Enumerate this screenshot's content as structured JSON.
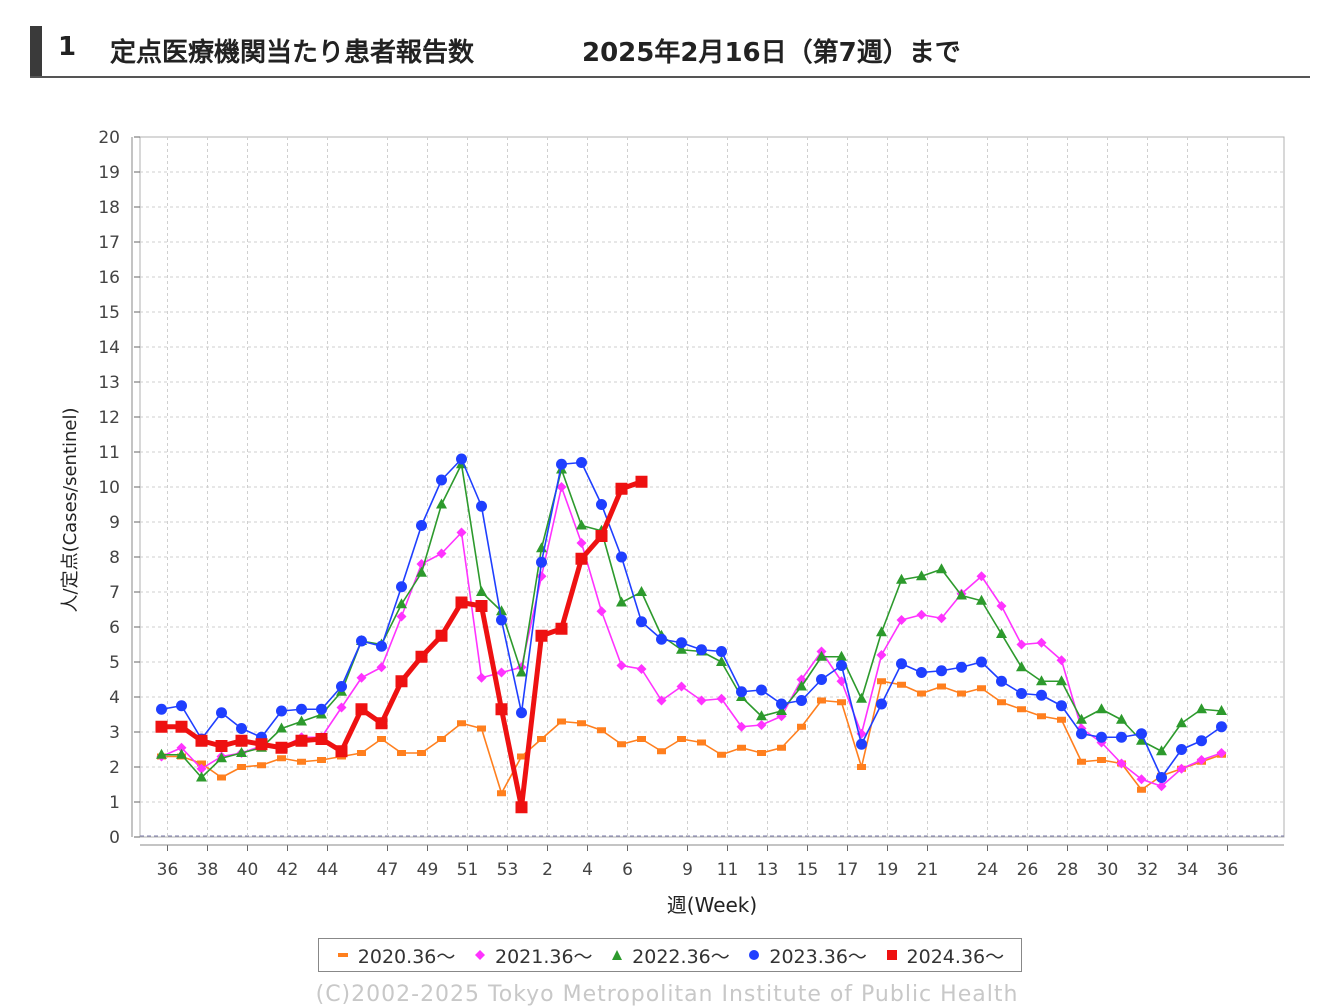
{
  "header": {
    "number": "1",
    "title": "定点医療機関当たり患者報告数",
    "date_range": "2025年2月16日（第7週）まで"
  },
  "chart_data": {
    "type": "line",
    "title": "",
    "xlabel": "週(Week)",
    "ylabel": "人/定点(Cases/sentinel)",
    "ylim": [
      0,
      20
    ],
    "yticks": [
      "0",
      "1",
      "2",
      "3",
      "4",
      "5",
      "6",
      "7",
      "8",
      "9",
      "10",
      "11",
      "12",
      "13",
      "14",
      "15",
      "16",
      "17",
      "18",
      "19",
      "20"
    ],
    "x_tick_labels": [
      "36",
      "38",
      "40",
      "42",
      "44",
      "47",
      "49",
      "51",
      "53",
      "2",
      "4",
      "6",
      "9",
      "11",
      "13",
      "15",
      "17",
      "19",
      "21",
      "24",
      "26",
      "28",
      "30",
      "32",
      "34",
      "36"
    ],
    "grid": true,
    "legend_position": "bottom",
    "series": [
      {
        "name": "2020.36～",
        "color": "#ff7f1e",
        "marker": "square",
        "values": [
          2.3,
          2.3,
          2.1,
          1.7,
          2.0,
          2.05,
          2.25,
          2.15,
          2.2,
          2.3,
          2.4,
          2.8,
          2.4,
          2.4,
          2.8,
          3.25,
          3.1,
          1.25,
          2.3,
          2.8,
          3.3,
          3.25,
          3.05,
          2.65,
          2.8,
          2.45,
          2.8,
          2.7,
          2.35,
          2.55,
          2.4,
          2.55,
          3.15,
          3.9,
          3.85,
          2.0,
          4.45,
          4.35,
          4.1,
          4.3,
          4.1,
          4.25,
          3.85,
          3.65,
          3.45,
          3.35,
          2.15,
          2.2,
          2.1,
          1.35,
          1.75,
          1.95,
          2.15,
          2.35
        ]
      },
      {
        "name": "2021.36～",
        "color": "#ff33ff",
        "marker": "diamond",
        "values": [
          2.3,
          2.55,
          1.95,
          2.3,
          2.4,
          2.6,
          2.55,
          2.85,
          2.85,
          3.7,
          4.55,
          4.85,
          6.3,
          7.8,
          8.1,
          8.7,
          4.55,
          4.7,
          4.85,
          7.45,
          10.0,
          8.4,
          6.45,
          4.9,
          4.8,
          3.9,
          4.3,
          3.9,
          3.95,
          3.15,
          3.2,
          3.45,
          4.5,
          5.3,
          4.45,
          2.95,
          5.2,
          6.2,
          6.35,
          6.25,
          6.95,
          7.45,
          6.6,
          5.5,
          5.55,
          5.05,
          3.1,
          2.7,
          2.1,
          1.65,
          1.45,
          1.95,
          2.2,
          2.4
        ]
      },
      {
        "name": "2022.36～",
        "color": "#2d9a2d",
        "marker": "triangle",
        "values": [
          2.35,
          2.35,
          1.7,
          2.25,
          2.4,
          2.55,
          3.1,
          3.3,
          3.5,
          4.15,
          5.6,
          5.5,
          6.65,
          7.55,
          9.5,
          10.65,
          7.0,
          6.45,
          4.7,
          8.25,
          10.5,
          8.9,
          8.75,
          6.7,
          7.0,
          5.75,
          5.35,
          5.3,
          5.0,
          4.0,
          3.45,
          3.6,
          4.3,
          5.15,
          5.15,
          3.95,
          5.85,
          7.35,
          7.45,
          7.65,
          6.9,
          6.75,
          5.8,
          4.85,
          4.45,
          4.45,
          3.35,
          3.65,
          3.35,
          2.75,
          2.45,
          3.25,
          3.65,
          3.6
        ]
      },
      {
        "name": "2023.36～",
        "color": "#1f3fff",
        "marker": "circle",
        "values": [
          3.65,
          3.75,
          2.8,
          3.55,
          3.1,
          2.85,
          3.6,
          3.65,
          3.65,
          4.3,
          5.6,
          5.45,
          7.15,
          8.9,
          10.2,
          10.8,
          9.45,
          6.2,
          3.55,
          7.85,
          10.65,
          10.7,
          9.5,
          8.0,
          6.15,
          5.65,
          5.55,
          5.35,
          5.3,
          4.15,
          4.2,
          3.8,
          3.9,
          4.5,
          4.9,
          2.65,
          3.8,
          4.95,
          4.7,
          4.75,
          4.85,
          5.0,
          4.45,
          4.1,
          4.05,
          3.75,
          2.95,
          2.85,
          2.85,
          2.95,
          1.7,
          2.5,
          2.75,
          3.15
        ]
      },
      {
        "name": "2024.36～",
        "color": "#ee1111",
        "marker": "square",
        "thick": true,
        "values": [
          3.15,
          3.15,
          2.75,
          2.6,
          2.75,
          2.65,
          2.55,
          2.75,
          2.8,
          2.45,
          3.65,
          3.25,
          4.45,
          5.15,
          5.75,
          6.7,
          6.6,
          3.65,
          0.85,
          5.75,
          5.95,
          7.95,
          8.6,
          9.95,
          10.15
        ]
      }
    ]
  },
  "legend": {
    "items": [
      "2020.36～",
      "2021.36～",
      "2022.36～",
      "2023.36～",
      "2024.36～"
    ]
  },
  "copyright": "(C)2002-2025 Tokyo Metropolitan Institute of Public Health"
}
